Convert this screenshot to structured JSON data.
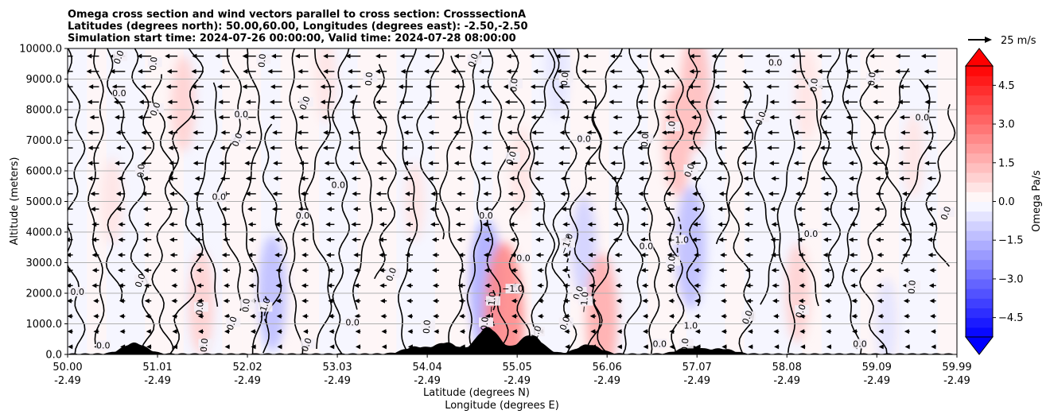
{
  "chart_data": {
    "type": "contour",
    "title_lines": [
      "Omega cross section and wind vectors parallel to cross section: CrosssectionA",
      "Latitudes (degrees north): 50.00,60.00, Longitudes (degrees east): -2.50,-2.50",
      "Simulation start time: 2024-07-26 00:00:00, Valid time: 2024-07-28 08:00:00"
    ],
    "xlabel_line1": "Latitude (degrees N)",
    "xlabel_line2": "Longitude (degrees E)",
    "ylabel": "Altitude (meters)",
    "x_range": [
      50.0,
      59.99
    ],
    "y_range": [
      0,
      10000
    ],
    "grid": "horizontal",
    "x_ticks": [
      {
        "lat": "50.00",
        "lon": "-2.49",
        "value": 50.0
      },
      {
        "lat": "51.01",
        "lon": "-2.49",
        "value": 51.01
      },
      {
        "lat": "52.02",
        "lon": "-2.49",
        "value": 52.02
      },
      {
        "lat": "53.03",
        "lon": "-2.49",
        "value": 53.03
      },
      {
        "lat": "54.04",
        "lon": "-2.49",
        "value": 54.04
      },
      {
        "lat": "55.05",
        "lon": "-2.49",
        "value": 55.05
      },
      {
        "lat": "56.06",
        "lon": "-2.49",
        "value": 56.06
      },
      {
        "lat": "57.07",
        "lon": "-2.49",
        "value": 57.07
      },
      {
        "lat": "58.08",
        "lon": "-2.49",
        "value": 58.08
      },
      {
        "lat": "59.09",
        "lon": "-2.49",
        "value": 59.09
      },
      {
        "lat": "59.99",
        "lon": "-2.49",
        "value": 59.99
      }
    ],
    "y_ticks": [
      {
        "label": "0.0",
        "value": 0
      },
      {
        "label": "1000.0",
        "value": 1000
      },
      {
        "label": "2000.0",
        "value": 2000
      },
      {
        "label": "3000.0",
        "value": 3000
      },
      {
        "label": "4000.0",
        "value": 4000
      },
      {
        "label": "5000.0",
        "value": 5000
      },
      {
        "label": "6000.0",
        "value": 6000
      },
      {
        "label": "7000.0",
        "value": 7000
      },
      {
        "label": "8000.0",
        "value": 8000
      },
      {
        "label": "9000.0",
        "value": 9000
      },
      {
        "label": "10000.0",
        "value": 10000
      }
    ],
    "colorbar": {
      "label": "Omega Pa/s",
      "range": [
        -5.25,
        5.25
      ],
      "step": 0.375,
      "tick_labels": [
        "4.5",
        "3.0",
        "1.5",
        "0.0",
        "−1.5",
        "−3.0",
        "−4.5"
      ],
      "tick_values": [
        4.5,
        3.0,
        1.5,
        0.0,
        -1.5,
        -3.0,
        -4.5
      ],
      "cmap": "bwr"
    },
    "quiver_key": {
      "label": "25 m/s",
      "value": 25
    },
    "wind": {
      "description": "horizontal wind parallel to cross section, mostly from north toward south (leftward arrows)",
      "typical_speed_upper_ms": 15,
      "typical_speed_lower_ms": 5,
      "direction": "negative-x"
    },
    "terrain_peaks": [
      {
        "lat": 50.75,
        "height_m": 350
      },
      {
        "lat": 53.9,
        "height_m": 220
      },
      {
        "lat": 54.25,
        "height_m": 360
      },
      {
        "lat": 54.72,
        "height_m": 860
      },
      {
        "lat": 55.2,
        "height_m": 620
      },
      {
        "lat": 55.85,
        "height_m": 300
      },
      {
        "lat": 57.0,
        "height_m": 240
      },
      {
        "lat": 57.35,
        "height_m": 160
      }
    ],
    "omega_features": [
      {
        "lat": 50.5,
        "alt_m": 5000,
        "omega": 0.6
      },
      {
        "lat": 51.3,
        "alt_m": 8200,
        "omega": 0.8
      },
      {
        "lat": 51.5,
        "alt_m": 1700,
        "omega": 1.0
      },
      {
        "lat": 52.3,
        "alt_m": 2000,
        "omega": -1.3
      },
      {
        "lat": 52.9,
        "alt_m": 9000,
        "omega": 0.6
      },
      {
        "lat": 53.9,
        "alt_m": 5000,
        "omega": 0.4
      },
      {
        "lat": 54.7,
        "alt_m": 2200,
        "omega": -1.8
      },
      {
        "lat": 54.9,
        "alt_m": 1000,
        "omega": 2.5
      },
      {
        "lat": 55.1,
        "alt_m": 6000,
        "omega": 0.6
      },
      {
        "lat": 55.5,
        "alt_m": 9200,
        "omega": -0.7
      },
      {
        "lat": 55.8,
        "alt_m": 3500,
        "omega": -1.0
      },
      {
        "lat": 56.0,
        "alt_m": 1200,
        "omega": 1.6
      },
      {
        "lat": 56.85,
        "alt_m": 7000,
        "omega": 1.2
      },
      {
        "lat": 57.0,
        "alt_m": 3500,
        "omega": -1.5
      },
      {
        "lat": 57.05,
        "alt_m": 8600,
        "omega": 1.4
      },
      {
        "lat": 58.3,
        "alt_m": 8500,
        "omega": 0.7
      },
      {
        "lat": 58.2,
        "alt_m": 2000,
        "omega": 0.9
      },
      {
        "lat": 59.2,
        "alt_m": 1000,
        "omega": -0.7
      },
      {
        "lat": 59.5,
        "alt_m": 6500,
        "omega": 0.5
      }
    ],
    "contour_labels": [
      {
        "text": "0.0",
        "lat": 50.59,
        "alt_m": 9700
      },
      {
        "text": "0.0",
        "lat": 50.98,
        "alt_m": 9500
      },
      {
        "text": "0.0",
        "lat": 50.58,
        "alt_m": 8500
      },
      {
        "text": "0.0",
        "lat": 51.0,
        "alt_m": 8000
      },
      {
        "text": "0.0",
        "lat": 50.84,
        "alt_m": 6000
      },
      {
        "text": "0.0",
        "lat": 50.11,
        "alt_m": 2000
      },
      {
        "text": "0.0",
        "lat": 50.83,
        "alt_m": 2400
      },
      {
        "text": "0.0",
        "lat": 51.5,
        "alt_m": 1500
      },
      {
        "text": "0.0",
        "lat": 51.95,
        "alt_m": 7800
      },
      {
        "text": "0.0",
        "lat": 51.92,
        "alt_m": 7000
      },
      {
        "text": "0.0",
        "lat": 52.2,
        "alt_m": 9600
      },
      {
        "text": "0.0",
        "lat": 51.7,
        "alt_m": 5100
      },
      {
        "text": "0.0",
        "lat": 51.86,
        "alt_m": 1000
      },
      {
        "text": "0.0",
        "lat": 52.02,
        "alt_m": 1600
      },
      {
        "text": "0.0",
        "lat": 52.64,
        "alt_m": 4500
      },
      {
        "text": "0.0",
        "lat": 52.68,
        "alt_m": 8200
      },
      {
        "text": "0.0",
        "lat": 53.4,
        "alt_m": 9000
      },
      {
        "text": "0.0",
        "lat": 53.04,
        "alt_m": 5500
      },
      {
        "text": "0.0",
        "lat": 53.65,
        "alt_m": 2600
      },
      {
        "text": "0.0",
        "lat": 54.05,
        "alt_m": 900
      },
      {
        "text": "0.0",
        "lat": 54.7,
        "alt_m": 4500
      },
      {
        "text": "0.0",
        "lat": 54.57,
        "alt_m": 9600
      },
      {
        "text": "0.0",
        "lat": 55.03,
        "alt_m": 8800
      },
      {
        "text": "0.0",
        "lat": 55.12,
        "alt_m": 3100
      },
      {
        "text": "0.0",
        "lat": 55.0,
        "alt_m": 6400
      },
      {
        "text": "0.0",
        "lat": 55.6,
        "alt_m": 9000
      },
      {
        "text": "0.0",
        "lat": 55.8,
        "alt_m": 7000
      },
      {
        "text": "0.0",
        "lat": 55.75,
        "alt_m": 2000
      },
      {
        "text": "0.0",
        "lat": 56.5,
        "alt_m": 7000
      },
      {
        "text": "0.0",
        "lat": 56.5,
        "alt_m": 3500
      },
      {
        "text": "0.0",
        "lat": 57.0,
        "alt_m": 6000
      },
      {
        "text": "0.0",
        "lat": 56.8,
        "alt_m": 3000
      },
      {
        "text": "0.0",
        "lat": 57.95,
        "alt_m": 9500
      },
      {
        "text": "0.0",
        "lat": 57.8,
        "alt_m": 7700
      },
      {
        "text": "0.0",
        "lat": 58.4,
        "alt_m": 8800
      },
      {
        "text": "0.0",
        "lat": 58.35,
        "alt_m": 3900
      },
      {
        "text": "0.0",
        "lat": 58.25,
        "alt_m": 1400
      },
      {
        "text": "0.0",
        "lat": 59.05,
        "alt_m": 9000
      },
      {
        "text": "0.0",
        "lat": 59.6,
        "alt_m": 7700
      },
      {
        "text": "0.0",
        "lat": 59.88,
        "alt_m": 4600
      },
      {
        "text": "0.0",
        "lat": 59.5,
        "alt_m": 2200
      },
      {
        "text": "0.0",
        "lat": 58.9,
        "alt_m": 300
      },
      {
        "text": "0.0",
        "lat": 57.65,
        "alt_m": 1200
      },
      {
        "text": "0.0",
        "lat": 56.95,
        "alt_m": 300
      },
      {
        "text": "0.0",
        "lat": 56.65,
        "alt_m": 300
      },
      {
        "text": "0.0",
        "lat": 55.6,
        "alt_m": 1000
      },
      {
        "text": "0.0",
        "lat": 54.7,
        "alt_m": 1000
      },
      {
        "text": "0.0",
        "lat": 53.2,
        "alt_m": 1000
      },
      {
        "text": "0.0",
        "lat": 52.7,
        "alt_m": 300
      },
      {
        "text": "0.0",
        "lat": 51.55,
        "alt_m": 300
      },
      {
        "text": "0.0",
        "lat": 50.4,
        "alt_m": 250
      },
      {
        "text": "−1.0",
        "lat": 52.22,
        "alt_m": 1500
      },
      {
        "text": "−1.0",
        "lat": 54.78,
        "alt_m": 1700
      },
      {
        "text": "−1.0",
        "lat": 55.0,
        "alt_m": 2100
      },
      {
        "text": "−1.0",
        "lat": 55.62,
        "alt_m": 3600
      },
      {
        "text": "−1.0",
        "lat": 55.82,
        "alt_m": 1700
      },
      {
        "text": "−1.0",
        "lat": 56.86,
        "alt_m": 3700
      },
      {
        "text": "1.0",
        "lat": 55.28,
        "alt_m": 700
      },
      {
        "text": "1.0",
        "lat": 56.8,
        "alt_m": 7400
      },
      {
        "text": "1.0",
        "lat": 57.0,
        "alt_m": 900
      }
    ]
  }
}
